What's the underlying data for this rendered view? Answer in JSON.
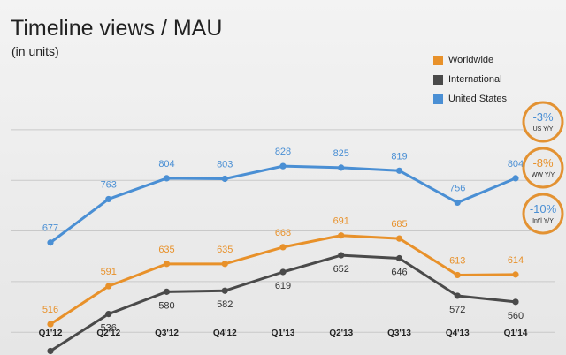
{
  "chart_data": {
    "type": "line",
    "title": "Timeline views / MAU",
    "subtitle": "(in units)",
    "categories": [
      "Q1'12",
      "Q2'12",
      "Q3'12",
      "Q4'12",
      "Q1'13",
      "Q2'13",
      "Q3'13",
      "Q4'13",
      "Q1'14"
    ],
    "series": [
      {
        "key": "us",
        "name": "United States",
        "color": "#4a8fd4",
        "values": [
          677,
          763,
          804,
          803,
          828,
          825,
          819,
          756,
          804
        ]
      },
      {
        "key": "ww",
        "name": "Worldwide",
        "color": "#e8912a",
        "values": [
          516,
          591,
          635,
          635,
          668,
          691,
          685,
          613,
          614
        ]
      },
      {
        "key": "intl",
        "name": "International",
        "color": "#4a4a4a",
        "values": [
          463,
          536,
          580,
          582,
          619,
          652,
          646,
          572,
          560
        ]
      }
    ],
    "legend": [
      "Worldwide",
      "International",
      "United States"
    ],
    "ylim": [
      0,
      1000
    ],
    "grid": true,
    "annotations": [
      {
        "value": "-3%",
        "label": "US Y/Y",
        "color": "#4a8fd4"
      },
      {
        "value": "-8%",
        "label": "WW Y/Y",
        "color": "#e8912a"
      },
      {
        "value": "-10%",
        "label": "Int'l Y/Y",
        "color": "#4a8fd4"
      }
    ],
    "colors": {
      "accent": "#e39232",
      "grid": "#c9c9c9",
      "text": "#222222"
    }
  }
}
